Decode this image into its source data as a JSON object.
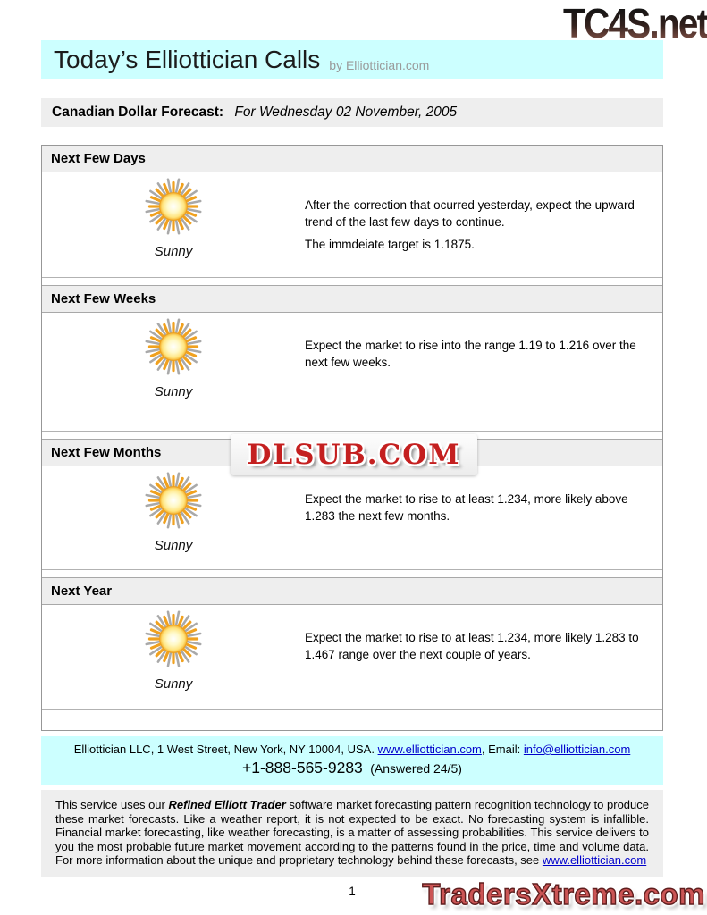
{
  "logo_top": "TC4S.net",
  "header": {
    "title": "Today’s Elliottician Calls",
    "byline": "by Elliottician.com"
  },
  "forecast_bar": {
    "label": "Canadian Dollar Forecast:",
    "date": "For Wednesday 02 November, 2005"
  },
  "sections": [
    {
      "title": "Next Few Days",
      "condition": "Sunny",
      "lines": [
        "After the correction that ocurred yesterday, expect the upward trend of the last few days to continue.",
        "The immdeiate target is 1.1875."
      ]
    },
    {
      "title": "Next Few Weeks",
      "condition": "Sunny",
      "lines": [
        "Expect the market to rise into the range 1.19 to 1.216 over the next few weeks."
      ]
    },
    {
      "title": "Next Few Months",
      "condition": "Sunny",
      "lines": [
        "Expect the market to rise to at least 1.234, more likely above 1.283 the next few months."
      ]
    },
    {
      "title": "Next Year",
      "condition": "Sunny",
      "lines": [
        "Expect the market to rise to at least 1.234, more likely 1.283 to 1.467 range over the next couple of years."
      ]
    }
  ],
  "watermark": "DLSUB.COM",
  "footer_contact": {
    "address_prefix": "Elliottician LLC, 1 West Street, New York, NY 10004, USA. ",
    "website": "www.elliottician.com",
    "email_label": ", Email: ",
    "email": "info@elliottician.com",
    "phone": "+1-888-565-9283",
    "answered": "(Answered 24/5)"
  },
  "disclaimer": {
    "pre": "This service uses our ",
    "product": "Refined Elliott Trader",
    "post": " software market forecasting pattern recognition technology to produce these market forecasts. Like a weather report, it is not expected to be exact. No forecasting system is infallible. Financial market forecasting, like weather forecasting, is a matter of assessing probabilities. This service delivers to you the most probable future market movement according to the patterns found in the price, time and volume data. For more information about the unique and proprietary technology behind these forecasts, see ",
    "link": "www.elliottician.com"
  },
  "page_number": "1",
  "logo_bottom": "TradersXtreme.com",
  "colors": {
    "accent_cyan": "#ccffff",
    "bar_gray": "#eeeeee",
    "link_blue": "#0000cc",
    "watermark_red": "#c41f1f",
    "logo_bottom_red": "#cb5555",
    "sun_orange": "#f0a11f"
  }
}
